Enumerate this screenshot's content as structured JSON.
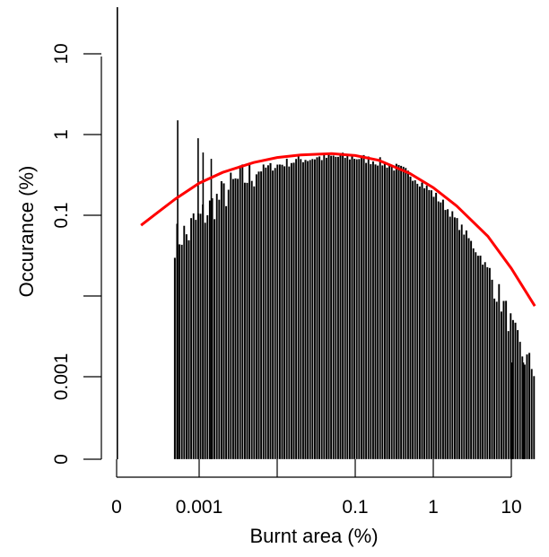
{
  "chart_data": {
    "type": "bar",
    "title": "",
    "xlabel": "Burnt area (%)",
    "ylabel": "Occurance (%)",
    "x_scale": "log",
    "y_scale": "log",
    "x_ticks": [
      {
        "value": 0,
        "label": "0"
      },
      {
        "value": 0.001,
        "label": "0.001"
      },
      {
        "value": 0.01,
        "label": ""
      },
      {
        "value": 0.1,
        "label": "0.1"
      },
      {
        "value": 1,
        "label": "1"
      },
      {
        "value": 10,
        "label": "10"
      }
    ],
    "y_ticks": [
      {
        "value": 0,
        "label": "0"
      },
      {
        "value": 0.001,
        "label": "0.001"
      },
      {
        "value": 0.01,
        "label": ""
      },
      {
        "value": 0.1,
        "label": "0.1"
      },
      {
        "value": 1,
        "label": "1"
      },
      {
        "value": 10,
        "label": "10"
      }
    ],
    "histogram_bars": {
      "description_x": "bar x positions in percent burnt area (log scale); heights are occurrence in percent",
      "x": [
        0.0005,
        0.0006,
        0.0007,
        0.0008,
        0.001,
        0.0013,
        0.0016,
        0.002,
        0.0025,
        0.003,
        0.004,
        0.005,
        0.006,
        0.008,
        0.01,
        0.013,
        0.016,
        0.02,
        0.025,
        0.03,
        0.04,
        0.05,
        0.06,
        0.08,
        0.1,
        0.13,
        0.16,
        0.2,
        0.25,
        0.3,
        0.4,
        0.5,
        0.6,
        0.8,
        1,
        1.3,
        1.6,
        2,
        2.5,
        3,
        4,
        5,
        6,
        8,
        10,
        13,
        16,
        20
      ],
      "y": [
        0.05,
        0.06,
        0.055,
        0.08,
        0.09,
        0.12,
        0.15,
        0.18,
        0.22,
        0.26,
        0.3,
        0.33,
        0.37,
        0.4,
        0.42,
        0.45,
        0.47,
        0.5,
        0.5,
        0.52,
        0.52,
        0.53,
        0.53,
        0.53,
        0.52,
        0.5,
        0.48,
        0.46,
        0.43,
        0.4,
        0.36,
        0.32,
        0.28,
        0.22,
        0.18,
        0.14,
        0.11,
        0.08,
        0.06,
        0.045,
        0.03,
        0.02,
        0.013,
        0.007,
        0.004,
        0.002,
        0.0015,
        0.0012
      ],
      "spikes": [
        {
          "x": 0.00052,
          "y": 1.5
        },
        {
          "x": 0.00095,
          "y": 0.9
        },
        {
          "x": 0.0011,
          "y": 0.6
        },
        {
          "x": 0.0014,
          "y": 0.5
        },
        {
          "x": 10,
          "y": 0.0015
        },
        {
          "x": 14,
          "y": 0.0015
        }
      ],
      "zero_bar": {
        "x": 0,
        "y": 25
      }
    },
    "fit_curve": {
      "color": "#ff0000",
      "x": [
        0.00018,
        0.0003,
        0.0005,
        0.001,
        0.002,
        0.005,
        0.01,
        0.02,
        0.05,
        0.1,
        0.2,
        0.5,
        1,
        2,
        5,
        10,
        20
      ],
      "y": [
        0.075,
        0.11,
        0.16,
        0.25,
        0.34,
        0.45,
        0.52,
        0.56,
        0.58,
        0.55,
        0.48,
        0.33,
        0.22,
        0.13,
        0.055,
        0.022,
        0.0075
      ]
    },
    "bar_color": "#000000",
    "grid": false
  }
}
